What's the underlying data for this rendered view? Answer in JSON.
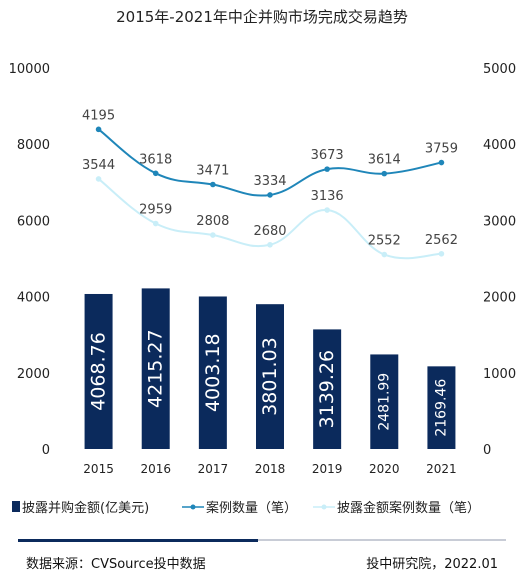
{
  "chart_data": {
    "type": "bar",
    "title": "2015年-2021年中企并购市场完成交易趋势",
    "categories": [
      "2015",
      "2016",
      "2017",
      "2018",
      "2019",
      "2020",
      "2021"
    ],
    "y_left": {
      "ticks": [
        "0",
        "2000",
        "4000",
        "6000",
        "8000",
        "10000"
      ],
      "range": [
        0,
        10000
      ]
    },
    "y_right": {
      "ticks": [
        "0",
        "1000",
        "2000",
        "3000",
        "4000",
        "5000"
      ],
      "range": [
        0,
        5000
      ]
    },
    "grid": false,
    "legend": "bottom",
    "series": [
      {
        "name": "披露并购金额(亿美元)",
        "type": "bar",
        "axis": "left",
        "color": "#0b2a5c",
        "values": [
          4068.76,
          4215.27,
          4003.18,
          3801.03,
          3139.26,
          2481.99,
          2169.46
        ],
        "labels": [
          "4068.76",
          "4215.27",
          "4003.18",
          "3801.03",
          "3139.26",
          "2481.99",
          "2169.46"
        ]
      },
      {
        "name": "案例数量（笔）",
        "type": "line",
        "axis": "right",
        "color": "#1f86b9",
        "values": [
          4195,
          3618,
          3471,
          3334,
          3673,
          3614,
          3759
        ],
        "labels": [
          "4195",
          "3618",
          "3471",
          "3334",
          "3673",
          "3614",
          "3759"
        ]
      },
      {
        "name": "披露金额案例数量（笔）",
        "type": "line",
        "axis": "right",
        "color": "#c9eef8",
        "values": [
          3544,
          2959,
          2808,
          2680,
          3136,
          2552,
          2562
        ],
        "labels": [
          "3544",
          "2959",
          "2808",
          "2680",
          "3136",
          "2552",
          "2562"
        ]
      }
    ]
  },
  "footer": {
    "source": "数据来源：CVSource投中数据",
    "org_date": "投中研究院，2022.01"
  }
}
